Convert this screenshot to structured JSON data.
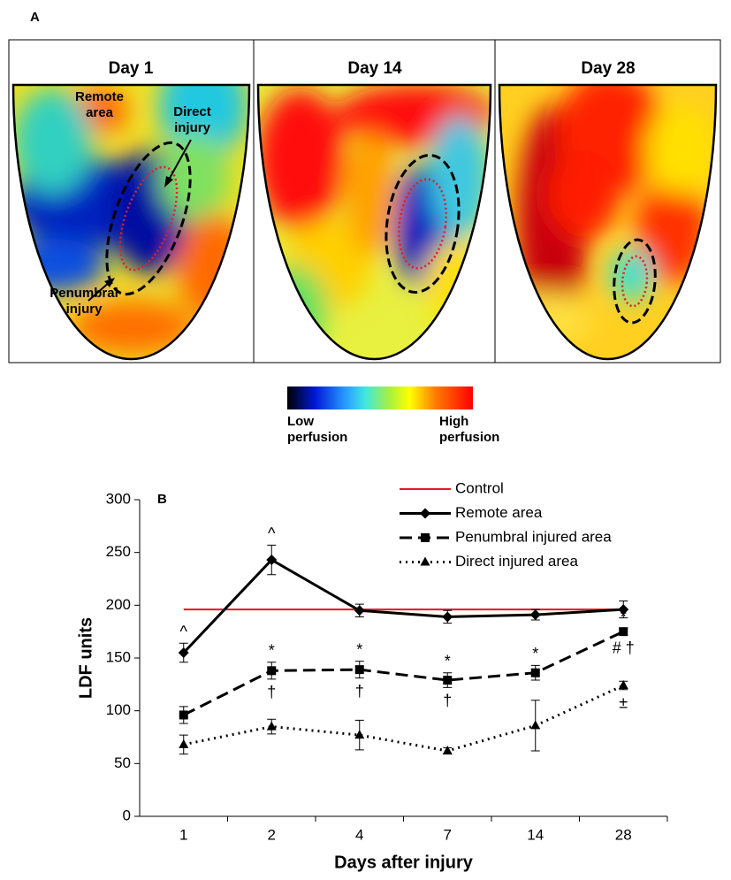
{
  "panel_a": {
    "label": "A",
    "images": [
      {
        "title": "Day 1",
        "annotations": [
          "Remote area",
          "Direct injury",
          "Penumbral injury"
        ]
      },
      {
        "title": "Day 14"
      },
      {
        "title": "Day 28"
      }
    ],
    "colorbar": {
      "low": "Low perfusion",
      "high": "High perfusion"
    }
  },
  "chart_data": {
    "type": "line",
    "label": "B",
    "x_label": "Days after injury",
    "y_label": "LDF units",
    "categories": [
      "1",
      "2",
      "4",
      "7",
      "14",
      "28"
    ],
    "ylim": [
      0,
      300
    ],
    "yticks": [
      0,
      50,
      100,
      150,
      200,
      250,
      300
    ],
    "series": [
      {
        "name": "Control",
        "color": "#e31a1c",
        "dash": "solid",
        "marker": "none",
        "values": [
          196,
          196,
          196,
          196,
          196,
          196
        ]
      },
      {
        "name": "Remote area",
        "color": "#000000",
        "dash": "solid",
        "marker": "diamond",
        "values": [
          155,
          243,
          195,
          189,
          191,
          196
        ],
        "errors": [
          9,
          14,
          6,
          6,
          5,
          8
        ],
        "marks_above": [
          "^",
          "^",
          null,
          null,
          null,
          null
        ]
      },
      {
        "name": "Penumbral injured area",
        "color": "#000000",
        "dash": "dashed",
        "marker": "square",
        "values": [
          96,
          138,
          139,
          129,
          136,
          175
        ],
        "errors": [
          8,
          8,
          8,
          7,
          7,
          3
        ],
        "marks_above": [
          null,
          "*",
          "*",
          "*",
          "*",
          "*"
        ],
        "marks_below": [
          null,
          "†",
          "†",
          "†",
          null,
          "# †"
        ]
      },
      {
        "name": "Direct injured area",
        "color": "#000000",
        "dash": "dotted",
        "marker": "triangle",
        "values": [
          68,
          85,
          77,
          62,
          86,
          124
        ],
        "errors": [
          9,
          7,
          14,
          3,
          24,
          4
        ],
        "marks_below": [
          null,
          null,
          null,
          null,
          null,
          "±"
        ]
      }
    ]
  }
}
